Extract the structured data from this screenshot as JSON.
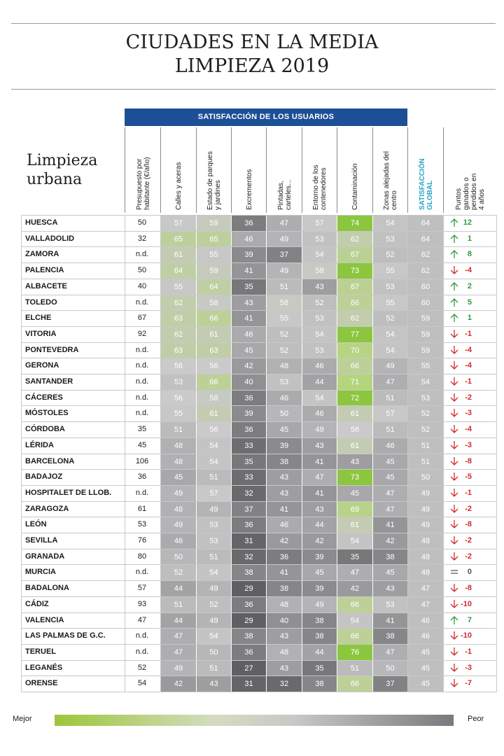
{
  "title": {
    "line1": "CIUDADES EN LA MEDIA",
    "line2": "LIMPIEZA 2019"
  },
  "subject": {
    "line1": "Limpieza",
    "line2": "urbana"
  },
  "group_header": "SATISFACCIÓN DE LOS USUARIOS",
  "legend": {
    "left": "Mejor",
    "right": "Peor"
  },
  "colors": {
    "header_blue": "#1c4f96",
    "global_label": "#2aa3c9",
    "best_green": "#9dc63a",
    "worst_gray": "#6e6e72",
    "up_green": "#2e9b3a",
    "down_red": "#d12a2a"
  },
  "chart_data": {
    "type": "table",
    "title": "CIUDADES EN LA MEDIA LIMPIEZA 2019",
    "columns": [
      "Presupuesto por habitante (€/año)",
      "Calles y aceras",
      "Estado de parques y jardines",
      "Excrementos",
      "Pintadas, carteles...",
      "Entorno de los contenedores",
      "Contaminación",
      "Zonas alejadas del centro",
      "SATISFACCIÓN GLOBAL",
      "Puntos ganados o perdidos en 4 años"
    ],
    "rows": [
      {
        "city": "HUESCA",
        "budget": "50",
        "scores": [
          57,
          59,
          36,
          47,
          57,
          74,
          54
        ],
        "global": 64,
        "points": "12",
        "trend": "up"
      },
      {
        "city": "VALLADOLID",
        "budget": "32",
        "scores": [
          65,
          65,
          46,
          49,
          53,
          62,
          53
        ],
        "global": 64,
        "points": "1",
        "trend": "up"
      },
      {
        "city": "ZAMORA",
        "budget": "n.d.",
        "scores": [
          61,
          55,
          39,
          37,
          54,
          67,
          52
        ],
        "global": 62,
        "points": "8",
        "trend": "up"
      },
      {
        "city": "PALENCIA",
        "budget": "50",
        "scores": [
          64,
          59,
          41,
          49,
          58,
          73,
          55
        ],
        "global": 62,
        "points": "-4",
        "trend": "down"
      },
      {
        "city": "ALBACETE",
        "budget": "40",
        "scores": [
          55,
          64,
          35,
          51,
          43,
          67,
          53
        ],
        "global": 60,
        "points": "2",
        "trend": "up"
      },
      {
        "city": "TOLEDO",
        "budget": "n.d.",
        "scores": [
          62,
          58,
          43,
          58,
          52,
          66,
          55
        ],
        "global": 60,
        "points": "5",
        "trend": "up"
      },
      {
        "city": "ELCHE",
        "budget": "67",
        "scores": [
          63,
          66,
          41,
          55,
          53,
          62,
          52
        ],
        "global": 59,
        "points": "1",
        "trend": "up"
      },
      {
        "city": "VITORIA",
        "budget": "92",
        "scores": [
          62,
          61,
          46,
          52,
          54,
          77,
          54
        ],
        "global": 59,
        "points": "-1",
        "trend": "down"
      },
      {
        "city": "PONTEVEDRA",
        "budget": "n.d.",
        "scores": [
          63,
          63,
          45,
          52,
          53,
          70,
          54
        ],
        "global": 59,
        "points": "-4",
        "trend": "down"
      },
      {
        "city": "GERONA",
        "budget": "n.d.",
        "scores": [
          56,
          56,
          42,
          48,
          46,
          66,
          49
        ],
        "global": 55,
        "points": "-4",
        "trend": "down"
      },
      {
        "city": "SANTANDER",
        "budget": "n.d.",
        "scores": [
          53,
          66,
          40,
          53,
          44,
          71,
          47
        ],
        "global": 54,
        "points": "-1",
        "trend": "down"
      },
      {
        "city": "CÁCERES",
        "budget": "n.d.",
        "scores": [
          56,
          58,
          36,
          46,
          54,
          72,
          51
        ],
        "global": 53,
        "points": "-2",
        "trend": "down"
      },
      {
        "city": "MÓSTOLES",
        "budget": "n.d.",
        "scores": [
          55,
          61,
          39,
          50,
          46,
          61,
          57
        ],
        "global": 52,
        "points": "-3",
        "trend": "down"
      },
      {
        "city": "CÓRDOBA",
        "budget": "35",
        "scores": [
          51,
          56,
          36,
          45,
          49,
          56,
          51
        ],
        "global": 52,
        "points": "-4",
        "trend": "down"
      },
      {
        "city": "LÉRIDA",
        "budget": "45",
        "scores": [
          48,
          54,
          33,
          39,
          43,
          61,
          46
        ],
        "global": 51,
        "points": "-3",
        "trend": "down"
      },
      {
        "city": "BARCELONA",
        "budget": "106",
        "scores": [
          48,
          54,
          35,
          38,
          41,
          43,
          45
        ],
        "global": 51,
        "points": "-8",
        "trend": "down"
      },
      {
        "city": "BADAJOZ",
        "budget": "36",
        "scores": [
          45,
          51,
          33,
          43,
          47,
          73,
          45
        ],
        "global": 50,
        "points": "-5",
        "trend": "down"
      },
      {
        "city": "HOSPITALET DE LLOB.",
        "budget": "n.d.",
        "scores": [
          49,
          57,
          32,
          43,
          41,
          45,
          47
        ],
        "global": 49,
        "points": "-1",
        "trend": "down"
      },
      {
        "city": "ZARAGOZA",
        "budget": "61",
        "scores": [
          48,
          49,
          37,
          41,
          43,
          69,
          47
        ],
        "global": 49,
        "points": "-2",
        "trend": "down"
      },
      {
        "city": "LEÓN",
        "budget": "53",
        "scores": [
          49,
          53,
          36,
          46,
          44,
          61,
          41
        ],
        "global": 49,
        "points": "-8",
        "trend": "down"
      },
      {
        "city": "SEVILLA",
        "budget": "76",
        "scores": [
          46,
          53,
          31,
          42,
          42,
          54,
          42
        ],
        "global": 48,
        "points": "-2",
        "trend": "down"
      },
      {
        "city": "GRANADA",
        "budget": "80",
        "scores": [
          50,
          51,
          32,
          36,
          39,
          35,
          38
        ],
        "global": 48,
        "points": "-2",
        "trend": "down"
      },
      {
        "city": "MURCIA",
        "budget": "n.d.",
        "scores": [
          52,
          54,
          38,
          41,
          45,
          47,
          45
        ],
        "global": 48,
        "points": "0",
        "trend": "equal"
      },
      {
        "city": "BADALONA",
        "budget": "57",
        "scores": [
          44,
          49,
          29,
          38,
          39,
          42,
          43
        ],
        "global": 47,
        "points": "-8",
        "trend": "down"
      },
      {
        "city": "CÁDIZ",
        "budget": "93",
        "scores": [
          51,
          52,
          36,
          48,
          49,
          66,
          53
        ],
        "global": 47,
        "points": "-10",
        "trend": "down"
      },
      {
        "city": "VALENCIA",
        "budget": "47",
        "scores": [
          44,
          49,
          29,
          40,
          38,
          54,
          41
        ],
        "global": 46,
        "points": "7",
        "trend": "up"
      },
      {
        "city": "LAS PALMAS DE G.C.",
        "budget": "n.d.",
        "scores": [
          47,
          54,
          38,
          43,
          38,
          66,
          38
        ],
        "global": 46,
        "points": "-10",
        "trend": "down"
      },
      {
        "city": "TERUEL",
        "budget": "n.d.",
        "scores": [
          47,
          50,
          36,
          48,
          44,
          76,
          47
        ],
        "global": 45,
        "points": "-1",
        "trend": "down"
      },
      {
        "city": "LEGANÉS",
        "budget": "52",
        "scores": [
          49,
          51,
          27,
          43,
          35,
          51,
          50
        ],
        "global": 45,
        "points": "-3",
        "trend": "down"
      },
      {
        "city": "ORENSE",
        "budget": "54",
        "scores": [
          42,
          43,
          31,
          32,
          38,
          66,
          37
        ],
        "global": 45,
        "points": "-7",
        "trend": "down"
      }
    ]
  }
}
